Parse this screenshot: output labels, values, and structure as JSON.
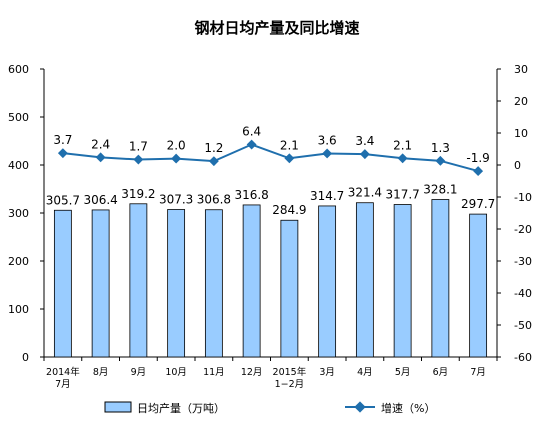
{
  "chart_data": {
    "type": "bar",
    "title": "钢材日均产量及同比增速",
    "categories": [
      [
        "2014年",
        "7月"
      ],
      [
        "8月"
      ],
      [
        "9月"
      ],
      [
        "10月"
      ],
      [
        "11月"
      ],
      [
        "12月"
      ],
      [
        "2015年",
        "1−2月"
      ],
      [
        "3月"
      ],
      [
        "4月"
      ],
      [
        "5月"
      ],
      [
        "6月"
      ],
      [
        "7月"
      ]
    ],
    "series": [
      {
        "name": "日均产量（万吨）",
        "type": "bar",
        "axis": "left",
        "color": "#99ccff",
        "values": [
          305.7,
          306.4,
          319.2,
          307.3,
          306.8,
          316.8,
          284.9,
          314.7,
          321.4,
          317.7,
          328.1,
          297.7
        ],
        "labels": [
          "305.7",
          "306.4",
          "319.2",
          "307.3",
          "306.8",
          "316.8",
          "284.9",
          "314.7",
          "321.4",
          "317.7",
          "328.1",
          "297.7"
        ]
      },
      {
        "name": "增速（%）",
        "type": "line",
        "axis": "right",
        "color": "#1f6fad",
        "values": [
          3.7,
          2.4,
          1.7,
          2.0,
          1.2,
          6.4,
          2.1,
          3.6,
          3.4,
          2.1,
          1.3,
          -1.9
        ],
        "labels": [
          "3.7",
          "2.4",
          "1.7",
          "2.0",
          "1.2",
          "6.4",
          "2.1",
          "3.6",
          "3.4",
          "2.1",
          "1.3",
          "-1.9"
        ]
      }
    ],
    "y_left": {
      "lim": [
        0,
        600
      ],
      "ticks": [
        "0",
        "100",
        "200",
        "300",
        "400",
        "500",
        "600"
      ]
    },
    "y_right": {
      "lim": [
        -60,
        30
      ],
      "ticks": [
        "-60",
        "-50",
        "-40",
        "-30",
        "-20",
        "-10",
        "0",
        "10",
        "20",
        "30"
      ]
    },
    "legend_position": "bottom",
    "grid": false
  }
}
